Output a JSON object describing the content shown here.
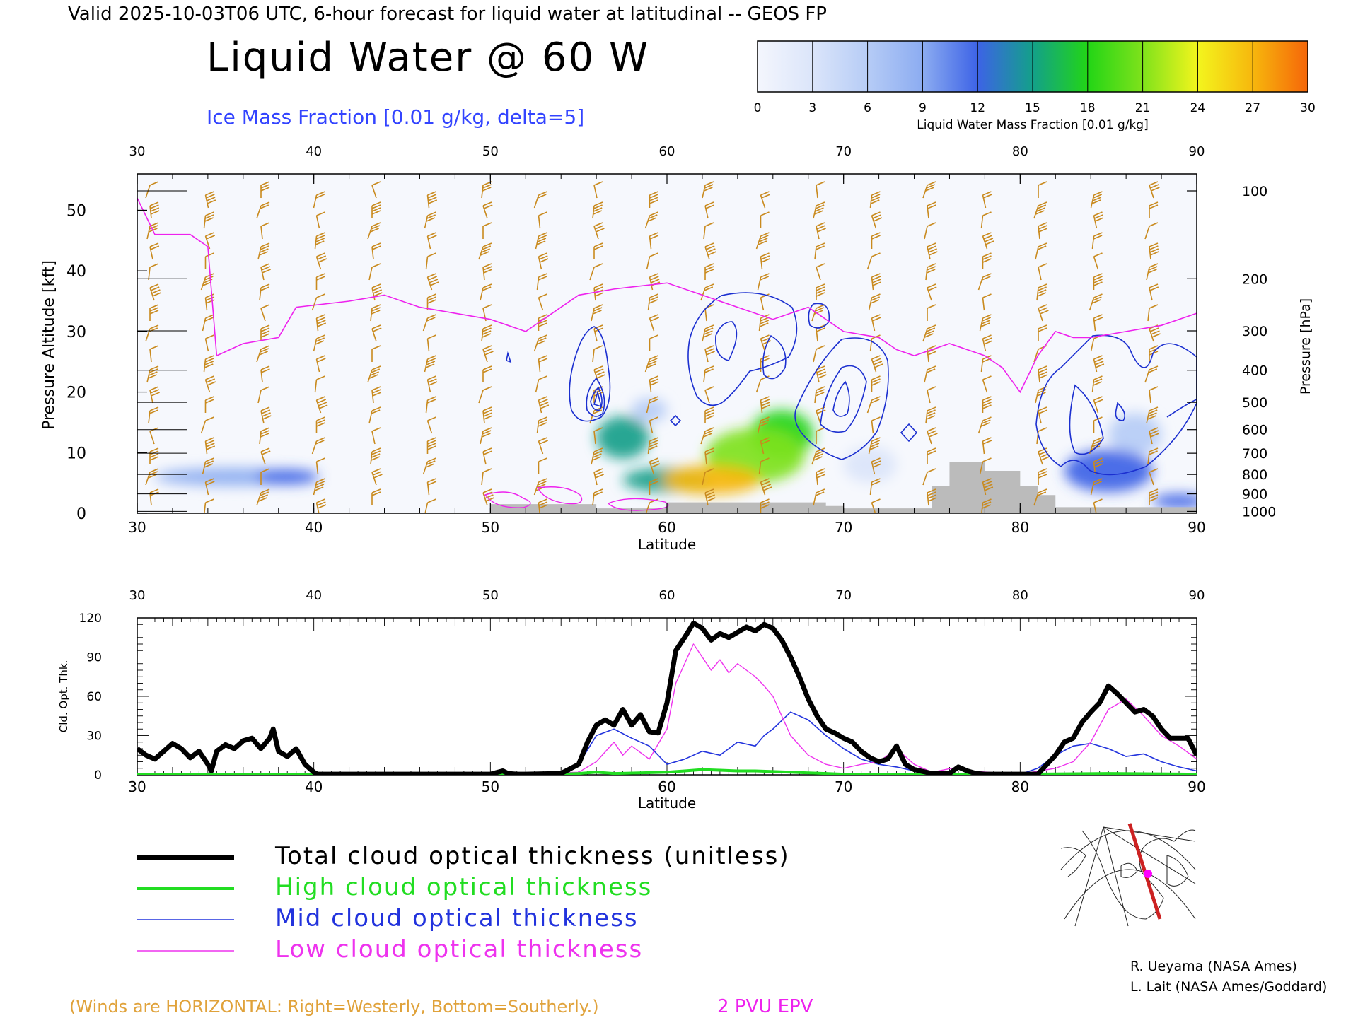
{
  "header": {
    "valid_line": "Valid 2025-10-03T06 UTC, 6-hour forecast for liquid water at latitudinal -- GEOS FP",
    "title": "Liquid Water @ 60 W",
    "subtitle": "Ice Mass Fraction [0.01 g/kg, delta=5]"
  },
  "colorbar": {
    "ticks": [
      "0",
      "3",
      "6",
      "9",
      "12",
      "15",
      "18",
      "21",
      "24",
      "27",
      "30"
    ],
    "label": "Liquid Water Mass Fraction [0.01 g/kg]",
    "colors": [
      "#f4f6fd",
      "#dbe5fa",
      "#b6ccf6",
      "#8cacf1",
      "#3d63e6",
      "#13a08a",
      "#22d516",
      "#7fe21b",
      "#f3f51d",
      "#f7b70d",
      "#f56609"
    ]
  },
  "footer": {
    "winds_note": "(Winds are HORIZONTAL: Right=Westerly, Bottom=Southerly.)",
    "epv_label": "2 PVU EPV",
    "credit1": "R. Ueyama (NASA Ames)",
    "credit2": "L. Lait (NASA Ames/Goddard)"
  },
  "legend": [
    {
      "label": "Total cloud optical thickness (unitless)",
      "color": "#000000"
    },
    {
      "label": "High cloud optical thickness",
      "color": "#22dd22"
    },
    {
      "label": "Mid cloud optical thickness",
      "color": "#2233dd"
    },
    {
      "label": "Low cloud optical thickness",
      "color": "#ee33ee"
    }
  ],
  "chart_data": [
    {
      "type": "heatmap",
      "title": "Liquid Water @ 60 W",
      "xlabel": "Latitude",
      "ylabel": "Pressure Altitude [kft]",
      "y2label": "Pressure [hPa]",
      "xlim": [
        30,
        90
      ],
      "ylim": [
        0,
        56
      ],
      "x_ticks": [
        "30",
        "40",
        "50",
        "60",
        "70",
        "80",
        "90"
      ],
      "y_ticks": [
        "0",
        "10",
        "20",
        "30",
        "40",
        "50"
      ],
      "pressure_ticks": [
        "100",
        "200",
        "300",
        "400",
        "500",
        "600",
        "700",
        "800",
        "900",
        "1000"
      ],
      "pressure_tick_kft": [
        53.2,
        38.7,
        30.1,
        23.6,
        18.3,
        13.8,
        9.9,
        6.4,
        3.2,
        0.3
      ],
      "liquid_water_blobs": [
        {
          "lat": 62.5,
          "kft": 5.5,
          "lat_radius": 2.8,
          "kft_radius": 2.4,
          "value": 27
        },
        {
          "lat": 65.0,
          "kft": 9.5,
          "lat_radius": 2.8,
          "kft_radius": 4.5,
          "value": 21
        },
        {
          "lat": 66.5,
          "kft": 13.0,
          "lat_radius": 1.8,
          "kft_radius": 4.0,
          "value": 18
        },
        {
          "lat": 60.0,
          "kft": 5.5,
          "lat_radius": 2.5,
          "kft_radius": 2.0,
          "value": 16
        },
        {
          "lat": 57.5,
          "kft": 12.5,
          "lat_radius": 1.5,
          "kft_radius": 3.5,
          "value": 14
        },
        {
          "lat": 35.5,
          "kft": 6.0,
          "lat_radius": 4.5,
          "kft_radius": 1.5,
          "value": 9
        },
        {
          "lat": 38.5,
          "kft": 6.0,
          "lat_radius": 1.8,
          "kft_radius": 1.2,
          "value": 13
        },
        {
          "lat": 85.0,
          "kft": 7.0,
          "lat_radius": 2.5,
          "kft_radius": 3.5,
          "value": 13
        },
        {
          "lat": 89.0,
          "kft": 2.0,
          "lat_radius": 1.5,
          "kft_radius": 1.2,
          "value": 13
        },
        {
          "lat": 86.5,
          "kft": 13.0,
          "lat_radius": 1.5,
          "kft_radius": 3.5,
          "value": 7
        },
        {
          "lat": 71.5,
          "kft": 8.0,
          "lat_radius": 1.5,
          "kft_radius": 3.0,
          "value": 4
        },
        {
          "lat": 59.0,
          "kft": 17.0,
          "lat_radius": 1.0,
          "kft_radius": 2.0,
          "value": 6
        }
      ],
      "epv_2pvu_line": {
        "lat": [
          30,
          31,
          33,
          34,
          34.5,
          36,
          38,
          39,
          42,
          44,
          46,
          50,
          52,
          54,
          55,
          57,
          60,
          62,
          64,
          66,
          68,
          70,
          72,
          73,
          74,
          76,
          78,
          79,
          80,
          81,
          82,
          83,
          84,
          86,
          88,
          90
        ],
        "kft": [
          52,
          46,
          46,
          44,
          26,
          28,
          29,
          34,
          35,
          36,
          34,
          32,
          30,
          34,
          36,
          37,
          38,
          36,
          34,
          32,
          34,
          30,
          29,
          27,
          26,
          28,
          26,
          24,
          20,
          26,
          30,
          29,
          29,
          30,
          31,
          33
        ]
      },
      "surface_terrain": {
        "lat": [
          50,
          55,
          56,
          60,
          65,
          69,
          70,
          75,
          76,
          78,
          80,
          81,
          82,
          90
        ],
        "kft": [
          1.5,
          1.5,
          0.8,
          1.8,
          1.8,
          1.2,
          0.8,
          4.5,
          8.5,
          7,
          4.5,
          3,
          1,
          1
        ]
      }
    },
    {
      "type": "line",
      "xlabel": "Latitude",
      "ylabel": "Cld. Opt. Thk.",
      "xlim": [
        30,
        90
      ],
      "ylim": [
        0,
        120
      ],
      "x_ticks": [
        "30",
        "40",
        "50",
        "60",
        "70",
        "80",
        "90"
      ],
      "y_ticks": [
        "0",
        "30",
        "60",
        "90",
        "120"
      ],
      "series": [
        {
          "name": "Total cloud optical thickness (unitless)",
          "color": "#000000",
          "x": [
            30,
            30.5,
            31,
            31.5,
            32,
            32.5,
            33,
            33.5,
            34,
            34.2,
            34.5,
            35,
            35.5,
            36,
            36.5,
            37,
            37.5,
            37.7,
            38,
            38.5,
            39,
            39.5,
            40,
            40.2,
            42,
            46,
            50,
            50.7,
            51,
            51.5,
            52,
            54,
            55,
            55.5,
            56,
            56.5,
            57,
            57.5,
            58,
            58.5,
            59,
            59.5,
            60,
            60.5,
            61,
            61.5,
            62,
            62.5,
            63,
            63.5,
            64,
            64.5,
            65,
            65.5,
            66,
            66.5,
            67,
            67.5,
            68,
            68.5,
            69,
            69.5,
            70,
            70.5,
            71,
            71.5,
            72,
            72.5,
            73,
            73.5,
            74,
            75,
            76,
            76.5,
            77,
            77.5,
            78,
            80,
            81,
            82,
            82.5,
            83,
            83.5,
            84,
            84.5,
            85,
            85.5,
            86,
            86.5,
            87,
            87.5,
            88,
            88.5,
            89,
            89.5,
            90
          ],
          "y": [
            20,
            15,
            12,
            18,
            24,
            20,
            13,
            18,
            8,
            3,
            18,
            23,
            20,
            26,
            28,
            20,
            28,
            35,
            18,
            14,
            20,
            8,
            2,
            0.5,
            0.5,
            0.5,
            0.5,
            3,
            1,
            0.5,
            0.5,
            1,
            8,
            25,
            38,
            42,
            38,
            50,
            38,
            46,
            33,
            32,
            55,
            95,
            105,
            116,
            112,
            103,
            108,
            105,
            109,
            113,
            110,
            115,
            112,
            103,
            90,
            75,
            58,
            45,
            35,
            32,
            28,
            25,
            18,
            13,
            10,
            12,
            22,
            8,
            4,
            1,
            1,
            6,
            3,
            1,
            0.5,
            0.5,
            0.5,
            15,
            25,
            28,
            40,
            48,
            55,
            68,
            62,
            55,
            48,
            50,
            45,
            35,
            28,
            28,
            28,
            15
          ]
        },
        {
          "name": "High cloud optical thickness",
          "color": "#22dd22",
          "x": [
            30,
            50,
            54,
            55,
            56,
            57,
            60,
            61,
            62,
            63,
            64,
            65,
            66,
            67,
            68,
            69,
            70,
            75,
            80,
            85,
            90
          ],
          "y": [
            0.5,
            0.5,
            0.5,
            1,
            2,
            1,
            2,
            3,
            4,
            3.5,
            3,
            3,
            2.5,
            2,
            1.5,
            1,
            0.5,
            0.5,
            0.5,
            1,
            0.5
          ]
        },
        {
          "name": "Mid cloud optical thickness",
          "color": "#2233dd",
          "x": [
            30,
            50,
            54,
            55,
            56,
            57,
            58,
            59,
            60,
            61,
            62,
            63,
            64,
            65,
            65.5,
            66,
            67,
            68,
            69,
            70,
            71,
            72,
            73,
            74,
            75,
            80,
            81,
            82,
            83,
            84,
            85,
            86,
            87,
            88,
            89,
            90
          ],
          "y": [
            0.5,
            0.5,
            1,
            8,
            30,
            35,
            28,
            22,
            8,
            12,
            18,
            15,
            25,
            22,
            30,
            35,
            48,
            42,
            30,
            20,
            12,
            8,
            6,
            3,
            1,
            0.5,
            5,
            15,
            22,
            24,
            20,
            14,
            16,
            10,
            6,
            3
          ]
        },
        {
          "name": "Low cloud optical thickness",
          "color": "#ee33ee",
          "x": [
            30,
            30.5,
            31,
            31.5,
            32,
            32.5,
            33,
            33.5,
            34,
            34.2,
            34.5,
            35,
            35.5,
            36,
            36.5,
            37,
            37.5,
            37.7,
            38,
            38.5,
            39,
            39.5,
            40,
            40.2,
            50,
            55,
            56,
            57,
            57.5,
            58,
            59,
            60,
            60.5,
            61,
            61.5,
            62,
            62.5,
            63,
            63.5,
            64,
            64.5,
            65,
            65.5,
            66,
            66.5,
            67,
            68,
            69,
            70,
            71,
            72,
            73,
            74,
            75,
            76.5,
            77,
            80,
            82,
            83,
            84,
            85,
            86,
            87,
            88,
            89,
            90
          ],
          "y": [
            20,
            15,
            12,
            18,
            24,
            20,
            13,
            18,
            8,
            3,
            18,
            23,
            20,
            26,
            28,
            20,
            28,
            35,
            18,
            14,
            20,
            8,
            2,
            0.5,
            0.5,
            2,
            10,
            25,
            15,
            22,
            12,
            35,
            70,
            85,
            100,
            90,
            80,
            88,
            78,
            85,
            80,
            75,
            68,
            60,
            45,
            30,
            15,
            8,
            5,
            8,
            10,
            20,
            8,
            2,
            6,
            3,
            0.5,
            5,
            10,
            25,
            50,
            58,
            45,
            30,
            22,
            12
          ]
        }
      ]
    }
  ]
}
